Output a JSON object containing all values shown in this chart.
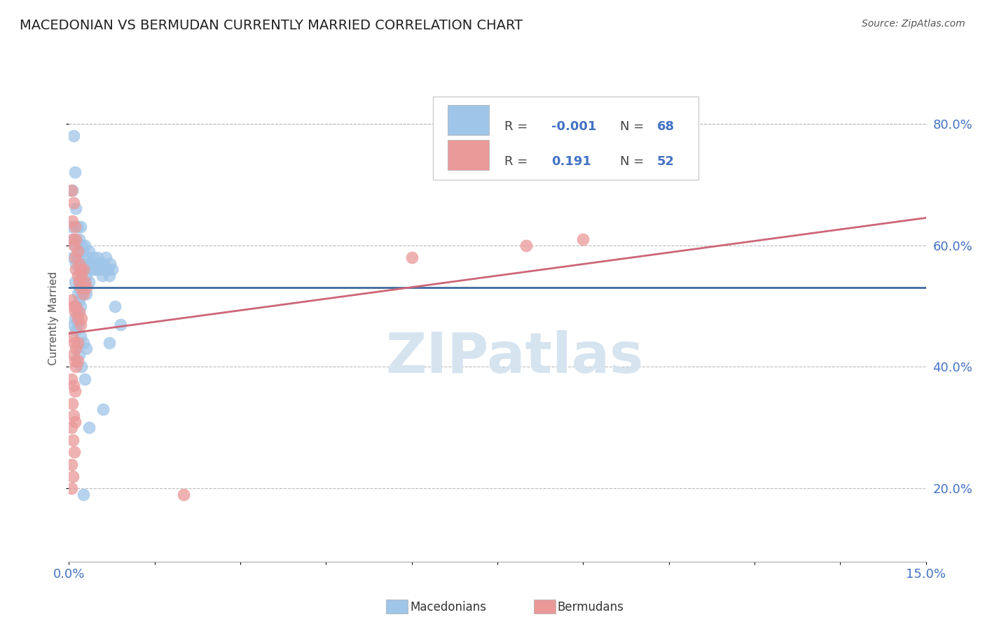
{
  "title": "MACEDONIAN VS BERMUDAN CURRENTLY MARRIED CORRELATION CHART",
  "source": "Source: ZipAtlas.com",
  "ylabel": "Currently Married",
  "xlim": [
    0.0,
    0.15
  ],
  "ylim": [
    0.08,
    0.88
  ],
  "ytick_positions": [
    0.2,
    0.4,
    0.6,
    0.8
  ],
  "ytick_labels": [
    "20.0%",
    "40.0%",
    "60.0%",
    "80.0%"
  ],
  "macedonian_R": "-0.001",
  "macedonian_N": "68",
  "bermudan_R": "0.191",
  "bermudan_N": "52",
  "blue_color": "#9fc5e8",
  "pink_color": "#ea9999",
  "blue_line_color": "#3d6b9e",
  "pink_line_color": "#cc6677",
  "background_color": "#ffffff",
  "grid_color": "#bbbbbb",
  "axis_label_color": "#4472c4",
  "legend_text_color": "#4472c4",
  "title_color": "#222222",
  "source_color": "#555555",
  "ylabel_color": "#555555",
  "watermark": "ZIPatlas",
  "watermark_color": "#d6e4f0",
  "macedonian_points": [
    [
      0.0008,
      0.78
    ],
    [
      0.001,
      0.72
    ],
    [
      0.0006,
      0.69
    ],
    [
      0.0012,
      0.66
    ],
    [
      0.0005,
      0.63
    ],
    [
      0.0008,
      0.61
    ],
    [
      0.0015,
      0.63
    ],
    [
      0.001,
      0.6
    ],
    [
      0.0007,
      0.58
    ],
    [
      0.0012,
      0.57
    ],
    [
      0.0018,
      0.61
    ],
    [
      0.002,
      0.63
    ],
    [
      0.0022,
      0.6
    ],
    [
      0.0015,
      0.58
    ],
    [
      0.0018,
      0.56
    ],
    [
      0.0025,
      0.59
    ],
    [
      0.0022,
      0.57
    ],
    [
      0.0028,
      0.6
    ],
    [
      0.003,
      0.58
    ],
    [
      0.0025,
      0.56
    ],
    [
      0.0032,
      0.57
    ],
    [
      0.0035,
      0.59
    ],
    [
      0.003,
      0.55
    ],
    [
      0.0038,
      0.57
    ],
    [
      0.004,
      0.56
    ],
    [
      0.0042,
      0.58
    ],
    [
      0.0035,
      0.54
    ],
    [
      0.0045,
      0.56
    ],
    [
      0.0048,
      0.57
    ],
    [
      0.005,
      0.58
    ],
    [
      0.0052,
      0.56
    ],
    [
      0.0055,
      0.57
    ],
    [
      0.0058,
      0.55
    ],
    [
      0.006,
      0.57
    ],
    [
      0.0062,
      0.56
    ],
    [
      0.0065,
      0.58
    ],
    [
      0.0068,
      0.56
    ],
    [
      0.007,
      0.55
    ],
    [
      0.0072,
      0.57
    ],
    [
      0.0075,
      0.56
    ],
    [
      0.001,
      0.54
    ],
    [
      0.0015,
      0.52
    ],
    [
      0.0018,
      0.53
    ],
    [
      0.002,
      0.54
    ],
    [
      0.0022,
      0.52
    ],
    [
      0.0025,
      0.53
    ],
    [
      0.0028,
      0.54
    ],
    [
      0.003,
      0.52
    ],
    [
      0.0012,
      0.5
    ],
    [
      0.0015,
      0.49
    ],
    [
      0.0018,
      0.51
    ],
    [
      0.002,
      0.5
    ],
    [
      0.0008,
      0.47
    ],
    [
      0.001,
      0.48
    ],
    [
      0.0012,
      0.46
    ],
    [
      0.0015,
      0.47
    ],
    [
      0.002,
      0.45
    ],
    [
      0.0025,
      0.44
    ],
    [
      0.003,
      0.43
    ],
    [
      0.0018,
      0.42
    ],
    [
      0.0022,
      0.4
    ],
    [
      0.0028,
      0.38
    ],
    [
      0.007,
      0.44
    ],
    [
      0.008,
      0.5
    ],
    [
      0.009,
      0.47
    ],
    [
      0.006,
      0.33
    ],
    [
      0.0035,
      0.3
    ],
    [
      0.0025,
      0.19
    ]
  ],
  "bermudan_points": [
    [
      0.0005,
      0.69
    ],
    [
      0.0008,
      0.67
    ],
    [
      0.0006,
      0.64
    ],
    [
      0.001,
      0.63
    ],
    [
      0.0007,
      0.61
    ],
    [
      0.0009,
      0.6
    ],
    [
      0.0012,
      0.61
    ],
    [
      0.001,
      0.58
    ],
    [
      0.0015,
      0.59
    ],
    [
      0.0012,
      0.56
    ],
    [
      0.0018,
      0.57
    ],
    [
      0.0015,
      0.55
    ],
    [
      0.002,
      0.56
    ],
    [
      0.0018,
      0.54
    ],
    [
      0.0022,
      0.55
    ],
    [
      0.0025,
      0.56
    ],
    [
      0.002,
      0.53
    ],
    [
      0.0028,
      0.54
    ],
    [
      0.0025,
      0.52
    ],
    [
      0.003,
      0.53
    ],
    [
      0.0005,
      0.51
    ],
    [
      0.0008,
      0.5
    ],
    [
      0.001,
      0.49
    ],
    [
      0.0012,
      0.5
    ],
    [
      0.0015,
      0.48
    ],
    [
      0.0018,
      0.49
    ],
    [
      0.002,
      0.47
    ],
    [
      0.0022,
      0.48
    ],
    [
      0.0006,
      0.45
    ],
    [
      0.0009,
      0.44
    ],
    [
      0.0012,
      0.43
    ],
    [
      0.0015,
      0.44
    ],
    [
      0.0008,
      0.42
    ],
    [
      0.001,
      0.41
    ],
    [
      0.0012,
      0.4
    ],
    [
      0.0015,
      0.41
    ],
    [
      0.0005,
      0.38
    ],
    [
      0.0008,
      0.37
    ],
    [
      0.001,
      0.36
    ],
    [
      0.0006,
      0.34
    ],
    [
      0.0008,
      0.32
    ],
    [
      0.001,
      0.31
    ],
    [
      0.0005,
      0.3
    ],
    [
      0.0007,
      0.28
    ],
    [
      0.0009,
      0.26
    ],
    [
      0.0005,
      0.24
    ],
    [
      0.0007,
      0.22
    ],
    [
      0.0005,
      0.2
    ],
    [
      0.06,
      0.58
    ],
    [
      0.08,
      0.6
    ],
    [
      0.09,
      0.61
    ],
    [
      0.02,
      0.19
    ]
  ],
  "blue_line": [
    0.0,
    0.53,
    0.15,
    0.53
  ],
  "pink_line": [
    0.0,
    0.455,
    0.15,
    0.645
  ]
}
